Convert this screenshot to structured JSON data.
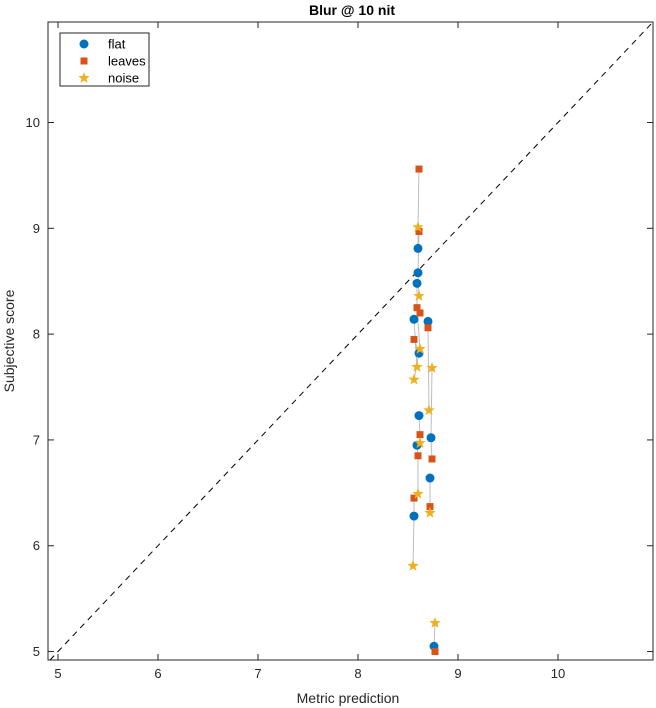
{
  "chart_data": {
    "type": "scatter",
    "title": "Blur @ 10 nit",
    "xlabel": "Metric prediction",
    "ylabel": "Subjective score",
    "xlim": [
      4.9,
      10.95
    ],
    "ylim": [
      4.92,
      10.95
    ],
    "xticks": [
      "5",
      "6",
      "7",
      "8",
      "9",
      "10"
    ],
    "yticks": [
      "5",
      "6",
      "7",
      "8",
      "9",
      "10"
    ],
    "grid": false,
    "legend_position": "top-left",
    "reference_line": "identity (dashed)",
    "series": [
      {
        "name": "flat",
        "color": "#0072BD",
        "marker": "circle",
        "points": [
          [
            8.56,
            6.28
          ],
          [
            8.59,
            6.95
          ],
          [
            8.61,
            7.23
          ],
          [
            8.61,
            7.82
          ],
          [
            8.56,
            8.14
          ],
          [
            8.59,
            8.48
          ],
          [
            8.6,
            8.58
          ],
          [
            8.6,
            8.81
          ],
          [
            8.7,
            8.12
          ],
          [
            8.73,
            7.02
          ],
          [
            8.72,
            6.64
          ],
          [
            8.76,
            5.05
          ]
        ]
      },
      {
        "name": "leaves",
        "color": "#D95319",
        "marker": "square",
        "points": [
          [
            8.56,
            6.45
          ],
          [
            8.6,
            6.85
          ],
          [
            8.62,
            7.05
          ],
          [
            8.56,
            7.95
          ],
          [
            8.62,
            8.2
          ],
          [
            8.59,
            8.25
          ],
          [
            8.61,
            8.97
          ],
          [
            8.61,
            9.56
          ],
          [
            8.7,
            8.06
          ],
          [
            8.74,
            6.82
          ],
          [
            8.72,
            6.37
          ],
          [
            8.77,
            5.0
          ]
        ]
      },
      {
        "name": "noise",
        "color": "#EDB120",
        "marker": "star",
        "points": [
          [
            8.55,
            5.81
          ],
          [
            8.6,
            6.49
          ],
          [
            8.62,
            6.97
          ],
          [
            8.56,
            7.57
          ],
          [
            8.59,
            7.69
          ],
          [
            8.62,
            7.86
          ],
          [
            8.61,
            8.36
          ],
          [
            8.6,
            9.01
          ],
          [
            8.71,
            7.28
          ],
          [
            8.74,
            7.68
          ],
          [
            8.72,
            6.31
          ],
          [
            8.77,
            5.27
          ]
        ]
      }
    ]
  }
}
